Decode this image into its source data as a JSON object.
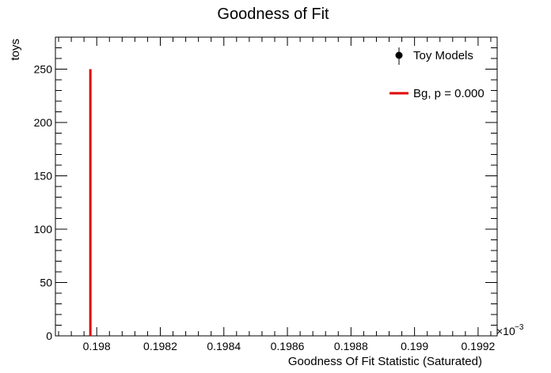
{
  "chart_data": {
    "type": "bar",
    "title": "Goodness of Fit",
    "xlabel": "Goodness Of Fit Statistic (Saturated)",
    "ylabel": "toys",
    "x_multiplier": "×10",
    "x_multiplier_exponent": "−3",
    "xlim": [
      0.19787,
      0.19926
    ],
    "ylim": [
      0,
      280
    ],
    "x_ticks": [
      0.198,
      0.1982,
      0.1984,
      0.1986,
      0.1988,
      0.199,
      0.1992
    ],
    "x_tick_labels": [
      "0.198",
      "0.1982",
      "0.1984",
      "0.1986",
      "0.1988",
      "0.199",
      "0.1992"
    ],
    "y_ticks": [
      0,
      50,
      100,
      150,
      200,
      250
    ],
    "y_tick_labels": [
      "0",
      "50",
      "100",
      "150",
      "200",
      "250"
    ],
    "series": [
      {
        "name": "Bg, p = 0.000",
        "kind": "vertical-line",
        "color": "#e00000",
        "x": 0.19798,
        "y": 250
      }
    ],
    "legend": {
      "placement": "top-right",
      "entries": [
        {
          "label": "Toy Models",
          "marker": "point-with-error"
        },
        {
          "label": "Bg, p = 0.000",
          "marker": "line",
          "color": "#e00000"
        }
      ]
    },
    "grid": false
  }
}
